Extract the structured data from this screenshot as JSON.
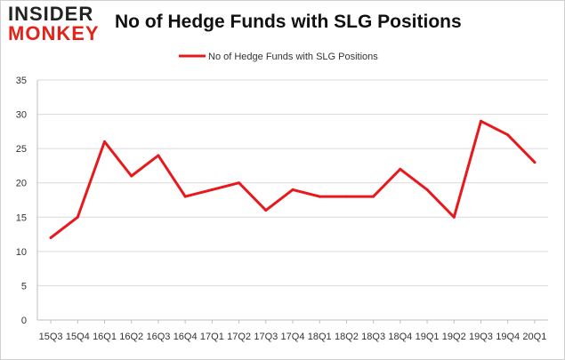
{
  "logo": {
    "line1": "INSIDER",
    "line2": "MONKEY"
  },
  "colors": {
    "series": "#e8191c",
    "grid": "#d9d9d9",
    "axis": "#bfbfbf",
    "logo_accent": "#e2231a"
  },
  "chart_data": {
    "type": "line",
    "title": "No of Hedge Funds with SLG Positions",
    "xlabel": "",
    "ylabel": "",
    "ylim": [
      0,
      35
    ],
    "yticks": [
      0,
      5,
      10,
      15,
      20,
      25,
      30,
      35
    ],
    "grid": true,
    "legend": "top",
    "categories": [
      "15Q3",
      "15Q4",
      "16Q1",
      "16Q2",
      "16Q3",
      "16Q4",
      "17Q1",
      "17Q2",
      "17Q3",
      "17Q4",
      "18Q1",
      "18Q2",
      "18Q3",
      "18Q4",
      "19Q1",
      "19Q2",
      "19Q3",
      "19Q4",
      "20Q1"
    ],
    "series": [
      {
        "name": "No of Hedge Funds with SLG Positions",
        "values": [
          12,
          15,
          26,
          21,
          24,
          18,
          19,
          20,
          16,
          19,
          18,
          18,
          18,
          22,
          19,
          15,
          29,
          27,
          23
        ]
      }
    ]
  }
}
